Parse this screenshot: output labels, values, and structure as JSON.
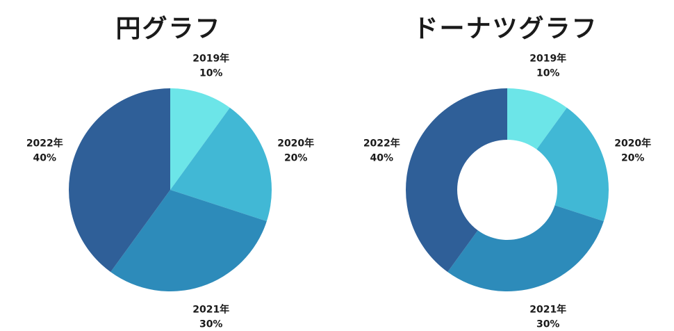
{
  "colors": {
    "s2019": "#6ce5e8",
    "s2020": "#41b8d5",
    "s2021": "#2d8bba",
    "s2022": "#2f5f98",
    "background": "#ffffff"
  },
  "chart_data": [
    {
      "type": "pie",
      "title": "円グラフ",
      "categories": [
        "2019年",
        "2020年",
        "2021年",
        "2022年"
      ],
      "values": [
        10,
        20,
        30,
        40
      ],
      "value_labels": [
        "10%",
        "20%",
        "30%",
        "40%"
      ],
      "start_angle": "12 o'clock",
      "direction": "clockwise",
      "legend": "none"
    },
    {
      "type": "pie",
      "subtype": "donut",
      "title": "ドーナツグラフ",
      "categories": [
        "2019年",
        "2020年",
        "2021年",
        "2022年"
      ],
      "values": [
        10,
        20,
        30,
        40
      ],
      "value_labels": [
        "10%",
        "20%",
        "30%",
        "40%"
      ],
      "start_angle": "12 o'clock",
      "direction": "clockwise",
      "legend": "none"
    }
  ]
}
